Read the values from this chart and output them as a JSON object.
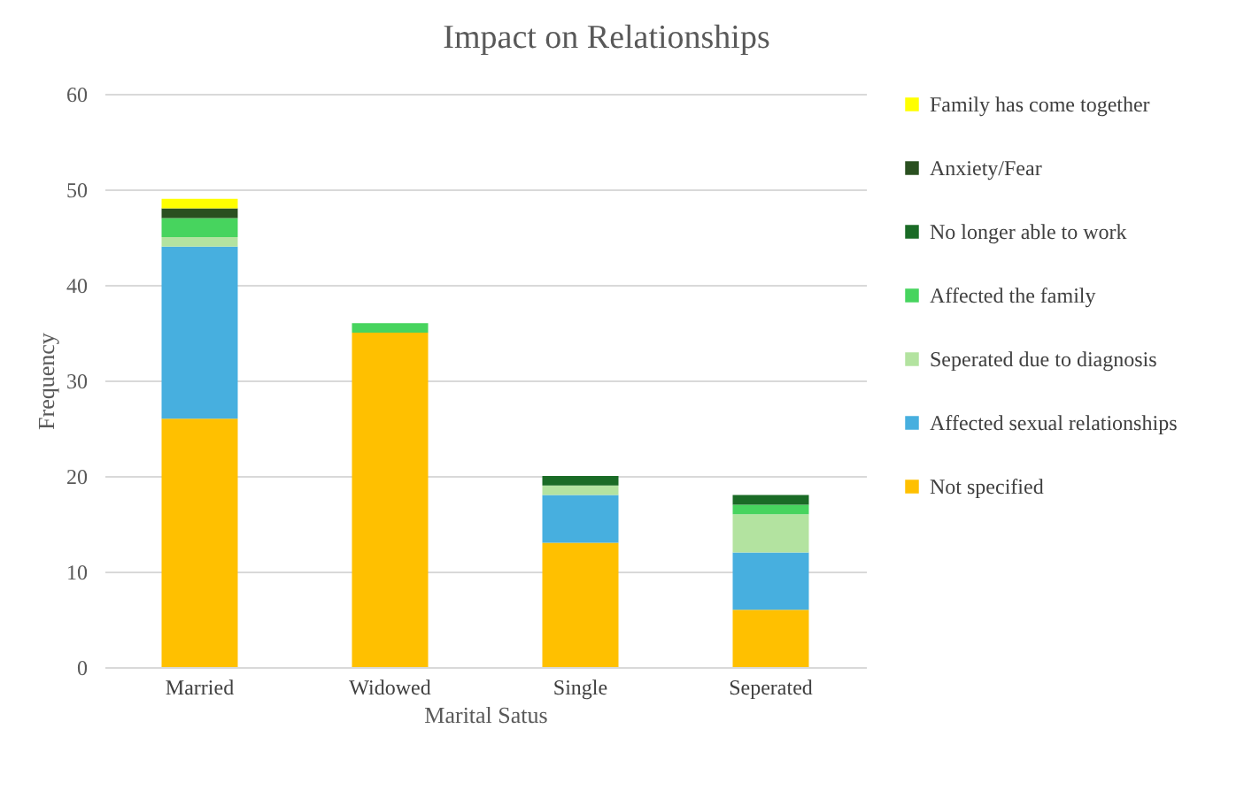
{
  "chart_data": {
    "type": "bar",
    "title": "Impact on Relationships",
    "xlabel": "Marital Satus",
    "ylabel": "Frequency",
    "categories": [
      "Married",
      "Widowed",
      "Single",
      "Seperated"
    ],
    "series": [
      {
        "name": "Not specified",
        "color": "#ffc000",
        "values": [
          26,
          35,
          13,
          6
        ]
      },
      {
        "name": "Affected sexual relationships",
        "color": "#47afdf",
        "values": [
          18,
          0,
          5,
          6
        ]
      },
      {
        "name": "Seperated due to diagnosis",
        "color": "#b3e3a0",
        "values": [
          1,
          0,
          1,
          4
        ]
      },
      {
        "name": "Affected the family",
        "color": "#47d45e",
        "values": [
          2,
          1,
          0,
          1
        ]
      },
      {
        "name": "No longer able to work",
        "color": "#1a6b26",
        "values": [
          0,
          0,
          1,
          1
        ]
      },
      {
        "name": "Anxiety/Fear",
        "color": "#2a5020",
        "values": [
          1,
          0,
          0,
          0
        ]
      },
      {
        "name": "Family has come together",
        "color": "#ffff00",
        "values": [
          1,
          0,
          0,
          0
        ]
      }
    ],
    "stacked": true,
    "ylim": [
      0,
      60
    ],
    "yticks": [
      0,
      10,
      20,
      30,
      40,
      50,
      60
    ],
    "grid": "y",
    "legend": "right"
  }
}
